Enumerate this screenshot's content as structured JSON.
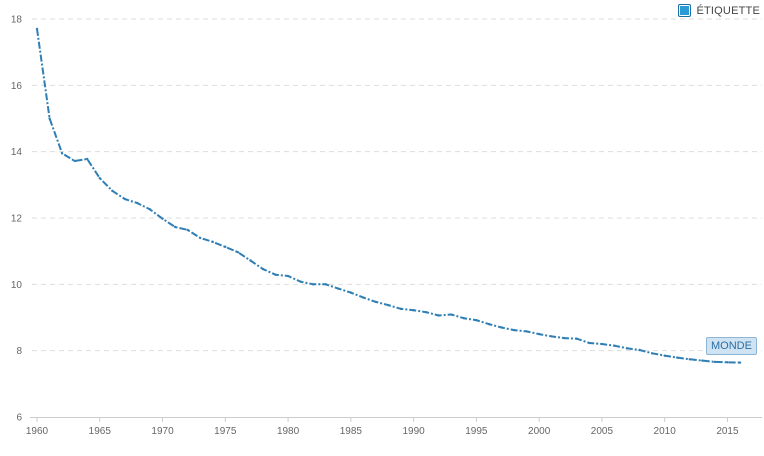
{
  "legend": {
    "label": "ÉTIQUETTE",
    "icon": "legend-square-icon",
    "color": "#2b9bd6"
  },
  "series_label": "MONDE",
  "colors": {
    "line": "#2f7fb5",
    "grid": "#dddddd",
    "axis": "#cccccc",
    "label_bg": "#cfe3f3"
  },
  "chart_data": {
    "type": "line",
    "xlim": [
      1960,
      2016
    ],
    "ylim": [
      6,
      18
    ],
    "yticks": [
      6,
      8,
      10,
      12,
      14,
      16,
      18
    ],
    "xticks": [
      1960,
      1965,
      1970,
      1975,
      1980,
      1985,
      1990,
      1995,
      2000,
      2005,
      2010,
      2015
    ],
    "grid": true,
    "legend_position": "top-right",
    "series": [
      {
        "name": "MONDE",
        "x": [
          1960,
          1961,
          1962,
          1963,
          1964,
          1965,
          1966,
          1967,
          1968,
          1969,
          1970,
          1971,
          1972,
          1973,
          1974,
          1975,
          1976,
          1977,
          1978,
          1979,
          1980,
          1981,
          1982,
          1983,
          1984,
          1985,
          1986,
          1987,
          1988,
          1989,
          1990,
          1991,
          1992,
          1993,
          1994,
          1995,
          1996,
          1997,
          1998,
          1999,
          2000,
          2001,
          2002,
          2003,
          2004,
          2005,
          2006,
          2007,
          2008,
          2009,
          2010,
          2011,
          2012,
          2013,
          2014,
          2015,
          2016
        ],
        "values": [
          17.7,
          15.0,
          13.95,
          13.72,
          13.78,
          13.2,
          12.82,
          12.57,
          12.45,
          12.26,
          11.98,
          11.73,
          11.64,
          11.4,
          11.28,
          11.13,
          10.97,
          10.72,
          10.46,
          10.29,
          10.25,
          10.08,
          10.0,
          10.0,
          9.87,
          9.75,
          9.6,
          9.47,
          9.37,
          9.26,
          9.22,
          9.16,
          9.06,
          9.09,
          8.98,
          8.92,
          8.8,
          8.7,
          8.62,
          8.58,
          8.5,
          8.43,
          8.38,
          8.36,
          8.23,
          8.2,
          8.15,
          8.07,
          8.02,
          7.92,
          7.85,
          7.79,
          7.74,
          7.7,
          7.66,
          7.65,
          7.64
        ]
      }
    ]
  }
}
